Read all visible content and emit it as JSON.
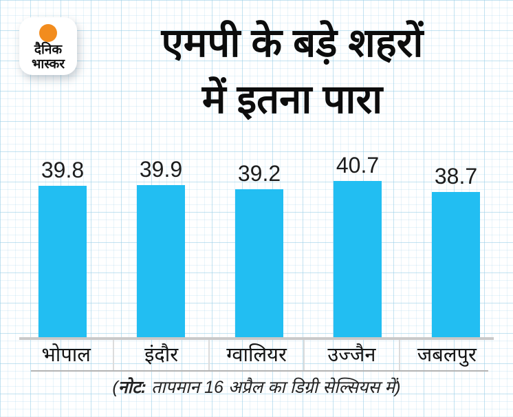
{
  "brand": {
    "logo_line1": "दैनिक",
    "logo_line2": "भास्कर"
  },
  "header": {
    "title_line1": "एमपी के बड़े शहरों",
    "title_line2": "में इतना पारा"
  },
  "chart_data": {
    "type": "bar",
    "title": "एमपी के बड़े शहरों में इतना पारा",
    "categories": [
      "भोपाल",
      "इंदौर",
      "ग्वालियर",
      "उज्जैन",
      "जबलपुर"
    ],
    "values": [
      39.8,
      39.9,
      39.2,
      40.7,
      38.7
    ],
    "unit": "डिग्री सेल्सियस",
    "value_labels_shown": true,
    "yaxis_shown": false,
    "grid_background": true,
    "legend_position": "none",
    "bar_color": "#22BEF2"
  },
  "note": {
    "open": "(",
    "label": "नोट:",
    "text": " तापमान 16 अप्रैल का डिग्री सेल्सियस में)"
  },
  "colors": {
    "bar": "#22BEF2",
    "logo_dot": "#F28C1E",
    "title_text": "#0c0c0c",
    "grid_line": "#cfe7f2",
    "axis_line": "#c9c9c9"
  }
}
